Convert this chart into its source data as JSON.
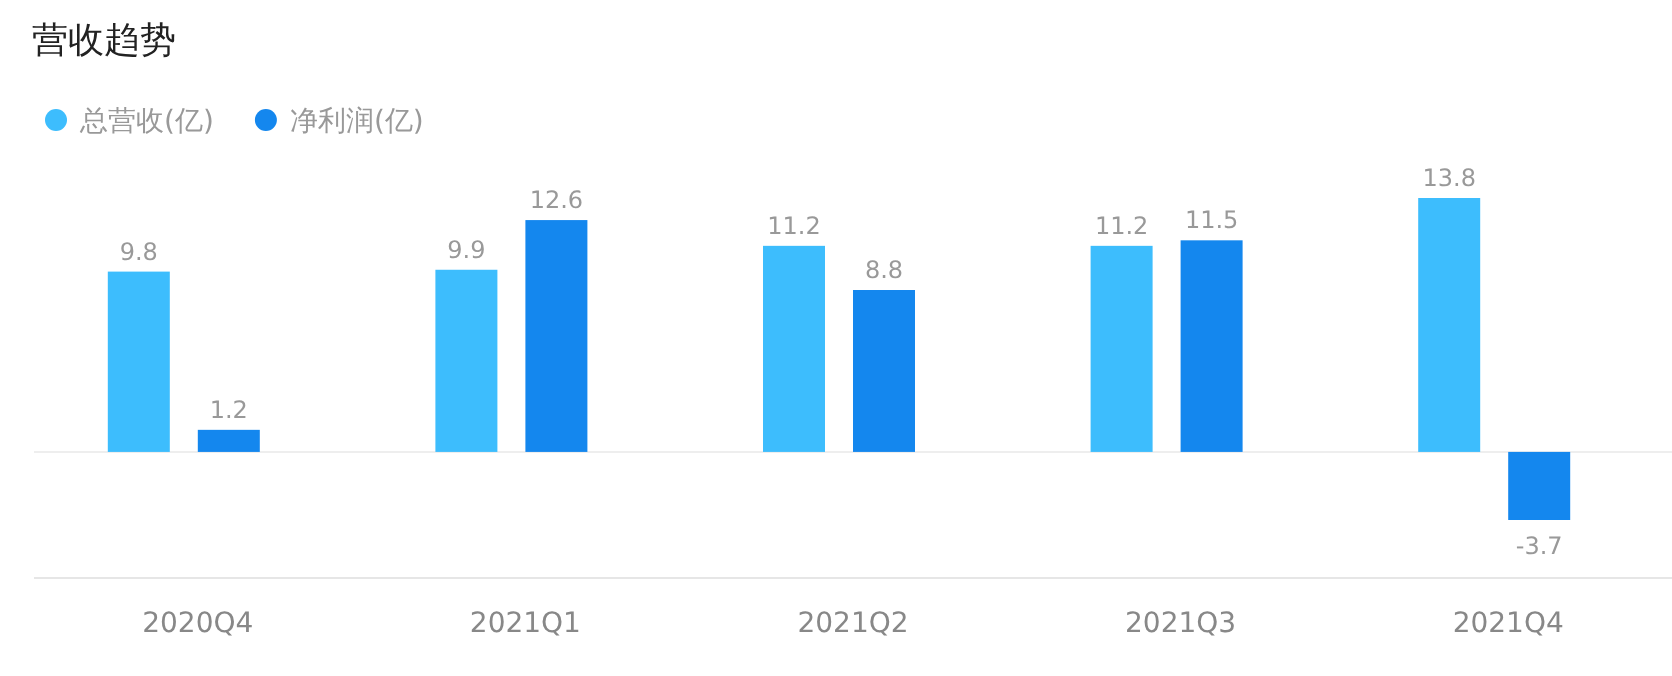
{
  "chart_data": {
    "type": "bar",
    "title": "营收趋势",
    "categories": [
      "2020Q4",
      "2021Q1",
      "2021Q2",
      "2021Q3",
      "2021Q4"
    ],
    "series": [
      {
        "name": "总营收(亿)",
        "color": "#3dbdfd",
        "values": [
          9.8,
          9.9,
          11.2,
          11.2,
          13.8
        ]
      },
      {
        "name": "净利润(亿)",
        "color": "#1487ee",
        "values": [
          1.2,
          12.6,
          8.8,
          11.5,
          -3.7
        ]
      }
    ],
    "data_labels": true,
    "legend": "top left"
  }
}
